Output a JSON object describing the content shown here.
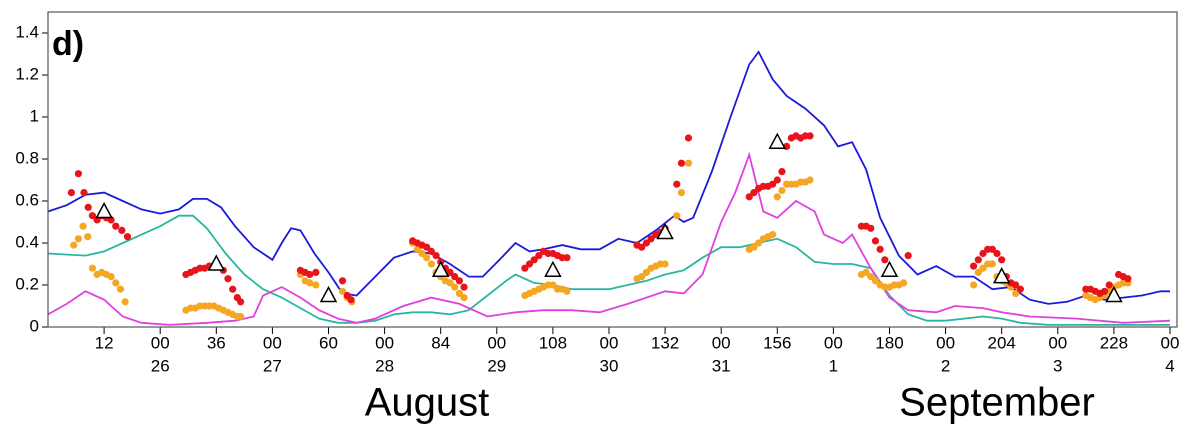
{
  "chart_data": {
    "type": "line",
    "panel_label": "d)",
    "xlim": [
      0,
      241.5
    ],
    "ylim": [
      0,
      1.5
    ],
    "yticks": [
      0,
      0.2,
      0.4,
      0.6,
      0.8,
      1,
      1.2,
      1.4
    ],
    "xticks": [
      12,
      {
        "value": 24,
        "label": "00"
      },
      36,
      {
        "value": 48,
        "label": "00"
      },
      60,
      {
        "value": 72,
        "label": "00"
      },
      84,
      {
        "value": 96,
        "label": "00"
      },
      108,
      {
        "value": 120,
        "label": "00"
      },
      132,
      {
        "value": 144,
        "label": "00"
      },
      156,
      {
        "value": 168,
        "label": "00"
      },
      180,
      {
        "value": 192,
        "label": "00"
      },
      204,
      {
        "value": 216,
        "label": "00"
      },
      228,
      {
        "value": 240,
        "label": "00"
      }
    ],
    "x_day_labels": [
      {
        "value": 24,
        "label": "26"
      },
      {
        "value": 48,
        "label": "27"
      },
      {
        "value": 72,
        "label": "28"
      },
      {
        "value": 96,
        "label": "29"
      },
      {
        "value": 120,
        "label": "30"
      },
      {
        "value": 144,
        "label": "31"
      },
      {
        "value": 168,
        "label": "1"
      },
      {
        "value": 192,
        "label": "2"
      },
      {
        "value": 216,
        "label": "3"
      },
      {
        "value": 240,
        "label": "4"
      }
    ],
    "month_labels": [
      "August",
      "September"
    ],
    "series": [
      {
        "style": "line",
        "color": "#1a1adb",
        "x": [
          0,
          4,
          8,
          12,
          16,
          20,
          24,
          28,
          31,
          34,
          37,
          40,
          44,
          48,
          50,
          52,
          54,
          57,
          60,
          63,
          66,
          70,
          74,
          78,
          82,
          86,
          90,
          93,
          97,
          100,
          103,
          106,
          110,
          114,
          118,
          122,
          126,
          130,
          134,
          136,
          138,
          142,
          146,
          150,
          152,
          155,
          158,
          162,
          166,
          169,
          172,
          175,
          178,
          182,
          186,
          190,
          194,
          198,
          202,
          206,
          210,
          214,
          218,
          222,
          226,
          230,
          234,
          238,
          240
        ],
        "values": [
          0.55,
          0.58,
          0.63,
          0.64,
          0.6,
          0.56,
          0.54,
          0.56,
          0.61,
          0.61,
          0.57,
          0.48,
          0.38,
          0.32,
          0.4,
          0.47,
          0.46,
          0.35,
          0.26,
          0.16,
          0.15,
          0.24,
          0.33,
          0.36,
          0.35,
          0.3,
          0.24,
          0.24,
          0.33,
          0.4,
          0.36,
          0.37,
          0.39,
          0.37,
          0.37,
          0.42,
          0.4,
          0.46,
          0.53,
          0.5,
          0.52,
          0.74,
          1.0,
          1.25,
          1.31,
          1.18,
          1.1,
          1.04,
          0.96,
          0.86,
          0.88,
          0.75,
          0.52,
          0.34,
          0.25,
          0.29,
          0.24,
          0.24,
          0.18,
          0.19,
          0.13,
          0.11,
          0.12,
          0.15,
          0.13,
          0.14,
          0.15,
          0.17,
          0.17
        ]
      },
      {
        "style": "line",
        "color": "#2ab5a0",
        "x": [
          0,
          8,
          12,
          16,
          20,
          24,
          28,
          31,
          34,
          38,
          42,
          46,
          50,
          54,
          58,
          62,
          66,
          70,
          74,
          78,
          82,
          86,
          90,
          94,
          98,
          100,
          104,
          108,
          112,
          116,
          120,
          124,
          128,
          132,
          136,
          140,
          144,
          148,
          152,
          156,
          160,
          164,
          168,
          172,
          176,
          180,
          184,
          188,
          192,
          196,
          200,
          204,
          208,
          214,
          220,
          230,
          240
        ],
        "values": [
          0.35,
          0.34,
          0.36,
          0.4,
          0.44,
          0.48,
          0.53,
          0.53,
          0.47,
          0.35,
          0.25,
          0.18,
          0.14,
          0.09,
          0.04,
          0.02,
          0.02,
          0.03,
          0.06,
          0.07,
          0.07,
          0.06,
          0.08,
          0.15,
          0.22,
          0.25,
          0.21,
          0.2,
          0.18,
          0.18,
          0.18,
          0.2,
          0.22,
          0.25,
          0.27,
          0.33,
          0.38,
          0.38,
          0.4,
          0.42,
          0.38,
          0.31,
          0.3,
          0.3,
          0.28,
          0.15,
          0.06,
          0.03,
          0.03,
          0.04,
          0.05,
          0.04,
          0.02,
          0.01,
          0.01,
          0.01,
          0.01
        ]
      },
      {
        "style": "line",
        "color": "#e040e0",
        "x": [
          0,
          4,
          8,
          12,
          16,
          20,
          26,
          34,
          40,
          44,
          46,
          50,
          54,
          58,
          62,
          66,
          70,
          76,
          82,
          88,
          94,
          100,
          106,
          112,
          118,
          124,
          128,
          132,
          136,
          140,
          144,
          147,
          150,
          153,
          156,
          160,
          164,
          166,
          170,
          172,
          176,
          180,
          184,
          190,
          194,
          200,
          204,
          210,
          220,
          230,
          240
        ],
        "values": [
          0.06,
          0.11,
          0.17,
          0.13,
          0.05,
          0.02,
          0.01,
          0.02,
          0.03,
          0.05,
          0.15,
          0.19,
          0.14,
          0.08,
          0.04,
          0.02,
          0.04,
          0.1,
          0.14,
          0.11,
          0.05,
          0.07,
          0.08,
          0.08,
          0.07,
          0.11,
          0.14,
          0.17,
          0.16,
          0.25,
          0.5,
          0.64,
          0.82,
          0.55,
          0.52,
          0.6,
          0.55,
          0.44,
          0.4,
          0.44,
          0.28,
          0.14,
          0.08,
          0.07,
          0.1,
          0.09,
          0.07,
          0.05,
          0.04,
          0.02,
          0.03
        ]
      },
      {
        "style": "dot",
        "color": "#f5a623",
        "x": [
          5.5,
          6.5,
          7.5,
          8.5,
          9.5,
          10.5,
          11.5,
          12.5,
          13.5,
          14.5,
          15.5,
          16.5,
          29.5,
          30.5,
          31.5,
          32.5,
          33.5,
          34.5,
          35.5,
          36.5,
          37.5,
          38.5,
          39.5,
          40.5,
          41.2,
          54,
          55,
          56,
          57.3,
          63,
          64,
          65,
          78,
          79,
          80,
          81,
          82,
          83,
          84,
          85,
          86,
          87,
          88,
          89,
          102,
          103,
          104,
          105,
          106,
          107,
          108,
          109,
          110,
          111,
          126,
          127,
          128,
          129,
          130,
          131,
          132,
          134.5,
          135.5,
          137,
          150,
          151,
          152,
          153,
          154,
          155,
          156,
          157,
          158,
          159,
          160,
          161,
          162,
          163,
          174,
          175,
          176,
          177,
          178,
          179,
          180,
          181,
          182,
          183,
          198,
          199,
          200,
          201,
          202,
          203,
          204,
          205,
          206,
          207,
          222,
          223,
          224,
          225,
          226,
          227,
          228,
          229,
          230,
          231
        ],
        "values": [
          0.39,
          0.42,
          0.48,
          0.43,
          0.28,
          0.25,
          0.26,
          0.25,
          0.24,
          0.21,
          0.18,
          0.12,
          0.08,
          0.09,
          0.09,
          0.1,
          0.1,
          0.1,
          0.1,
          0.09,
          0.08,
          0.07,
          0.06,
          0.05,
          0.05,
          0.25,
          0.22,
          0.21,
          0.2,
          0.17,
          0.14,
          0.12,
          0.4,
          0.37,
          0.35,
          0.33,
          0.3,
          0.26,
          0.24,
          0.22,
          0.21,
          0.19,
          0.16,
          0.14,
          0.15,
          0.16,
          0.17,
          0.18,
          0.19,
          0.2,
          0.2,
          0.18,
          0.18,
          0.17,
          0.23,
          0.24,
          0.26,
          0.28,
          0.29,
          0.3,
          0.3,
          0.53,
          0.64,
          0.78,
          0.37,
          0.38,
          0.4,
          0.42,
          0.43,
          0.44,
          0.62,
          0.65,
          0.68,
          0.68,
          0.68,
          0.69,
          0.69,
          0.7,
          0.25,
          0.26,
          0.24,
          0.22,
          0.2,
          0.19,
          0.19,
          0.2,
          0.2,
          0.21,
          0.2,
          0.26,
          0.28,
          0.3,
          0.3,
          0.24,
          0.22,
          0.21,
          0.19,
          0.16,
          0.15,
          0.14,
          0.13,
          0.14,
          0.15,
          0.17,
          0.19,
          0.2,
          0.21,
          0.21
        ]
      },
      {
        "style": "dot",
        "color": "#e8141b",
        "x": [
          5,
          6.5,
          7.7,
          8.6,
          9.5,
          10.5,
          11.5,
          12.5,
          13.5,
          14.5,
          15.8,
          17,
          29.5,
          30.5,
          31.5,
          32.5,
          33.5,
          34.5,
          35.5,
          36.5,
          37.5,
          38.5,
          39.5,
          40.5,
          41.2,
          54,
          55,
          56,
          57.3,
          63,
          64,
          64.8,
          78,
          79,
          80,
          81,
          82,
          83,
          84,
          85,
          86,
          87,
          88,
          89,
          102,
          103,
          104,
          105,
          106,
          107,
          108,
          109,
          110,
          111,
          126,
          127,
          128,
          129,
          130,
          131,
          132,
          134.5,
          135.5,
          137,
          150,
          151,
          152,
          153,
          154,
          155,
          156,
          157,
          158,
          159,
          160,
          161,
          162,
          163,
          174,
          175,
          176,
          177,
          178,
          179,
          180,
          184,
          198,
          199,
          200,
          201,
          202,
          203,
          204,
          205,
          206,
          207,
          208,
          222,
          223,
          224,
          225,
          226,
          227,
          229,
          230,
          231
        ],
        "values": [
          0.64,
          0.73,
          0.64,
          0.57,
          0.53,
          0.51,
          0.53,
          0.52,
          0.51,
          0.48,
          0.46,
          0.43,
          0.25,
          0.26,
          0.27,
          0.28,
          0.28,
          0.29,
          0.29,
          0.29,
          0.27,
          0.23,
          0.18,
          0.14,
          0.12,
          0.27,
          0.26,
          0.25,
          0.26,
          0.22,
          0.15,
          0.13,
          0.41,
          0.4,
          0.39,
          0.38,
          0.36,
          0.34,
          0.31,
          0.28,
          0.26,
          0.24,
          0.22,
          0.19,
          0.28,
          0.3,
          0.32,
          0.34,
          0.36,
          0.35,
          0.35,
          0.34,
          0.33,
          0.33,
          0.39,
          0.38,
          0.4,
          0.42,
          0.44,
          0.45,
          0.47,
          0.68,
          0.78,
          0.9,
          0.62,
          0.64,
          0.66,
          0.67,
          0.67,
          0.68,
          0.7,
          0.74,
          0.86,
          0.9,
          0.91,
          0.9,
          0.91,
          0.91,
          0.48,
          0.48,
          0.47,
          0.41,
          0.37,
          0.32,
          0.27,
          0.34,
          0.29,
          0.32,
          0.35,
          0.37,
          0.37,
          0.35,
          0.32,
          0.24,
          0.21,
          0.2,
          0.18,
          0.18,
          0.18,
          0.17,
          0.16,
          0.17,
          0.2,
          0.25,
          0.24,
          0.23
        ]
      },
      {
        "style": "triangle",
        "color": "#000000",
        "x": [
          12,
          36,
          60,
          84,
          108,
          132,
          156,
          180,
          204,
          228
        ],
        "values": [
          0.55,
          0.3,
          0.15,
          0.27,
          0.27,
          0.45,
          0.88,
          0.27,
          0.24,
          0.15
        ]
      }
    ]
  }
}
